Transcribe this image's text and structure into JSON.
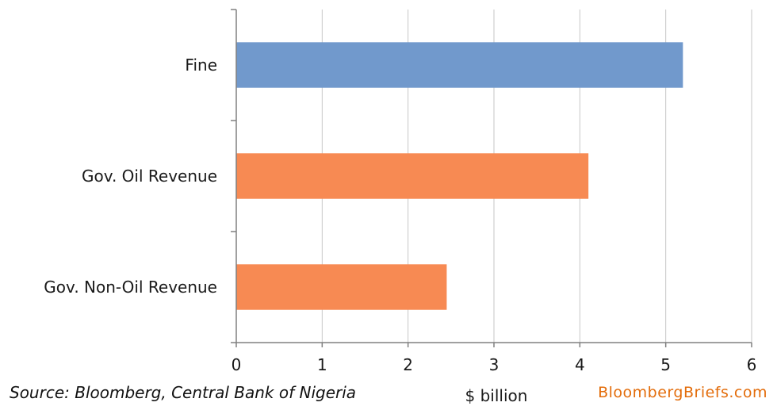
{
  "chart_data": {
    "type": "bar",
    "orientation": "horizontal",
    "categories": [
      "Fine",
      "Gov. Oil Revenue",
      "Gov. Non-Oil Revenue"
    ],
    "values": [
      5.2,
      4.1,
      2.45
    ],
    "colors": [
      "#7199cc",
      "#f78a53",
      "#f78a53"
    ],
    "xlabel": "$ billion",
    "xlim": [
      0,
      6
    ],
    "xticks": [
      "0",
      "1",
      "2",
      "3",
      "4",
      "5",
      "6"
    ],
    "grid": "vertical",
    "legend": "none"
  },
  "footer": {
    "source": "Source: Bloomberg, Central Bank of Nigeria",
    "brand": "BloombergBriefs.com"
  }
}
